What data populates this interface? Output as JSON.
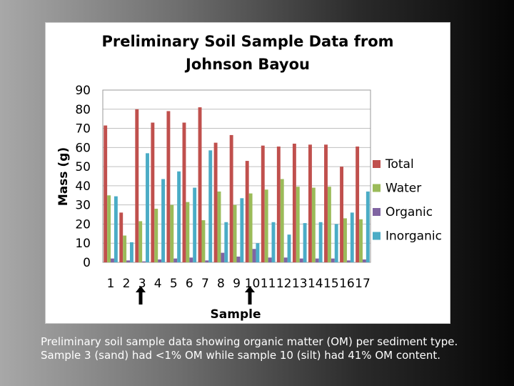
{
  "caption": "Preliminary soil sample data showing organic matter (OM) per sediment type. Sample 3 (sand) had <1% OM while sample 10 (silt) had 41% OM content.",
  "markers": {
    "arrow_samples": [
      "3",
      "10"
    ]
  },
  "colors": {
    "Total": "#c0504d",
    "Water": "#9bbb59",
    "Organic": "#8064a2",
    "Inorganic": "#4bacc6"
  },
  "chart_data": {
    "type": "bar",
    "title_lines": [
      "Preliminary Soil Sample Data from",
      "Johnson Bayou"
    ],
    "xlabel": "Sample",
    "ylabel": "Mass (g)",
    "ylim": [
      0,
      90
    ],
    "yticks": [
      0,
      10,
      20,
      30,
      40,
      50,
      60,
      70,
      80,
      90
    ],
    "grid": true,
    "legend_position": "right",
    "categories": [
      "1",
      "2",
      "3",
      "4",
      "5",
      "6",
      "7",
      "8",
      "9",
      "10",
      "11",
      "12",
      "13",
      "14",
      "15",
      "16",
      "17"
    ],
    "series": [
      {
        "name": "Total",
        "values": [
          71.5,
          26,
          80,
          73,
          79,
          73,
          81,
          62.5,
          66.5,
          53,
          61,
          60.5,
          62,
          61.5,
          61.5,
          50,
          60.5
        ]
      },
      {
        "name": "Water",
        "values": [
          35,
          14,
          21.5,
          28,
          30,
          31.5,
          22,
          37,
          30,
          36,
          38,
          43.5,
          39.5,
          39,
          39.5,
          23,
          22.5
        ]
      },
      {
        "name": "Organic",
        "values": [
          2,
          1,
          0.5,
          1.5,
          2,
          2.5,
          1,
          5,
          3,
          7,
          2.5,
          2.5,
          2,
          2,
          2,
          1,
          1.5
        ]
      },
      {
        "name": "Inorganic",
        "values": [
          34.5,
          10.5,
          57,
          43.5,
          47.5,
          39,
          58.5,
          21,
          33.5,
          10,
          21,
          14.5,
          20.5,
          21,
          20,
          26,
          37
        ]
      }
    ]
  }
}
